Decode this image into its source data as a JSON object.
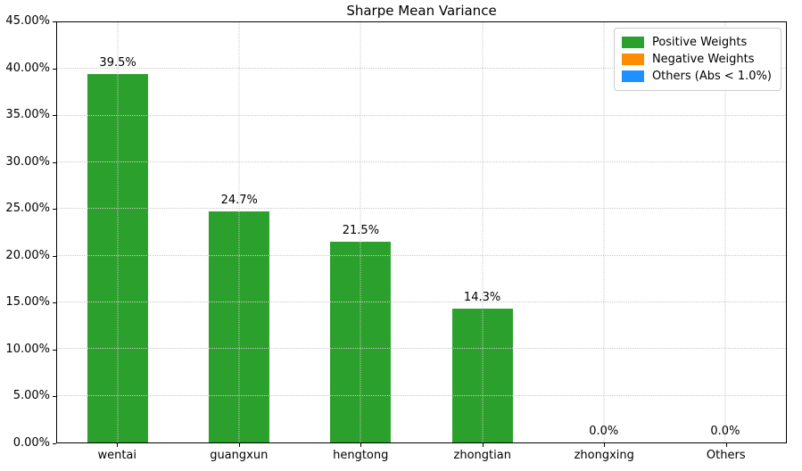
{
  "title": "Sharpe Mean Variance",
  "chart_data": {
    "type": "bar",
    "title": "Sharpe Mean Variance",
    "categories": [
      "wentai",
      "guangxun",
      "hengtong",
      "zhongtian",
      "zhongxing",
      "Others"
    ],
    "values": [
      39.5,
      24.7,
      21.5,
      14.3,
      0.0,
      0.0
    ],
    "bar_labels": [
      "39.5%",
      "24.7%",
      "21.5%",
      "14.3%",
      "0.0%",
      "0.0%"
    ],
    "bar_color": "#2ca02c",
    "xlabel": "",
    "ylabel": "",
    "ylim": [
      0,
      45
    ],
    "yticks": [
      {
        "value": 0,
        "label": "0.00%"
      },
      {
        "value": 5,
        "label": "5.00%"
      },
      {
        "value": 10,
        "label": "10.00%"
      },
      {
        "value": 15,
        "label": "15.00%"
      },
      {
        "value": 20,
        "label": "20.00%"
      },
      {
        "value": 25,
        "label": "25.00%"
      },
      {
        "value": 30,
        "label": "30.00%"
      },
      {
        "value": 35,
        "label": "35.00%"
      },
      {
        "value": 40,
        "label": "40.00%"
      },
      {
        "value": 45,
        "label": "45.00%"
      }
    ],
    "grid": true,
    "grid_style": "dotted",
    "legend": {
      "position": "top-right",
      "items": [
        {
          "label": "Positive Weights",
          "color": "#2ca02c"
        },
        {
          "label": "Negative Weights",
          "color": "#ff8c00"
        },
        {
          "label": "Others (Abs < 1.0%)",
          "color": "#1e90ff"
        }
      ]
    }
  }
}
